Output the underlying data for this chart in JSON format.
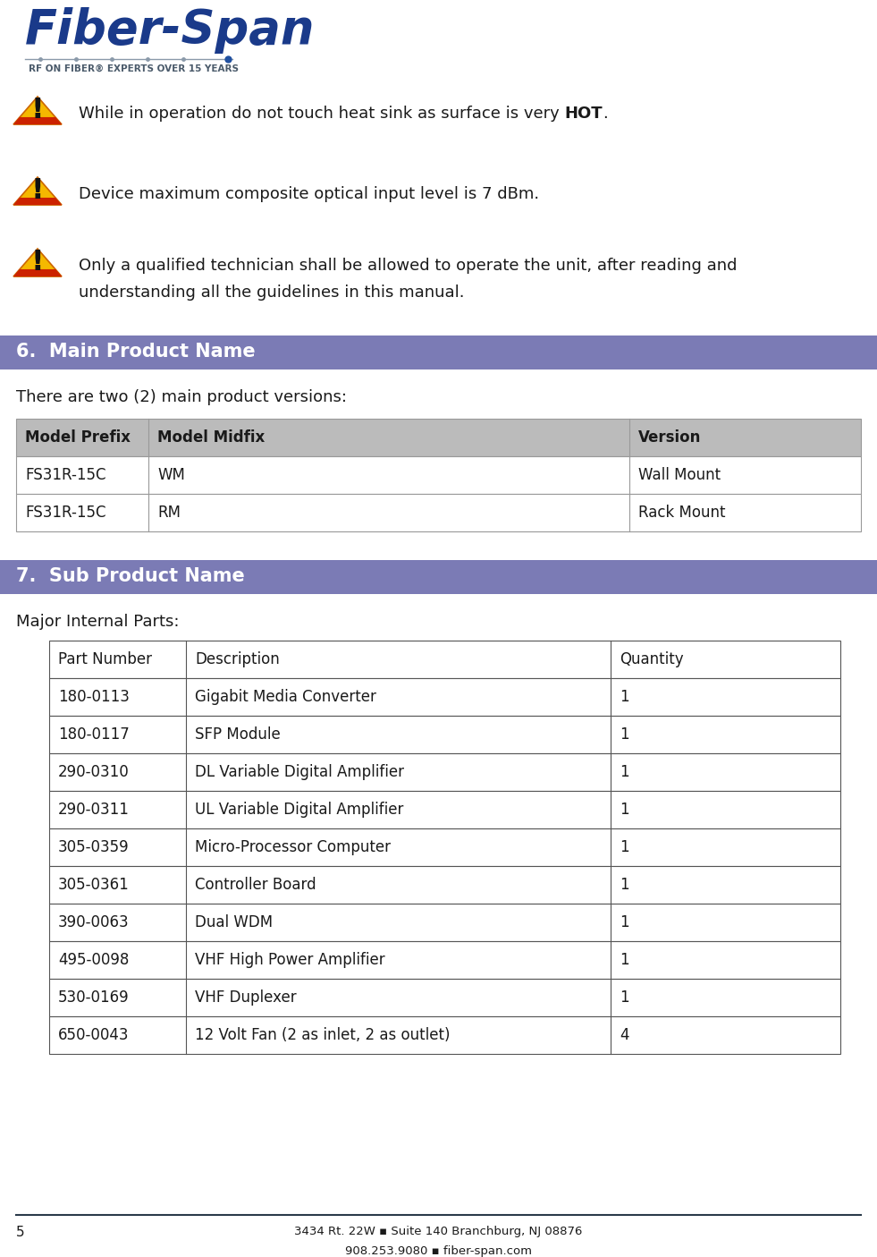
{
  "page_number": "5",
  "footer_line1": "3434 Rt. 22W ▪ Suite 140 Branchburg, NJ 08876",
  "footer_line2": "908.253.9080 ▪ fiber-span.com",
  "warning1_normal": "While in operation do not touch heat sink as surface is very ",
  "warning1_bold": "HOT",
  "warning1_end": ".",
  "warning2": "Device maximum composite optical input level is 7 dBm.",
  "warning3_line1": "Only a qualified technician shall be allowed to operate the unit, after reading and",
  "warning3_line2": "understanding all the guidelines in this manual.",
  "section6_num": "6.",
  "section6_title": "Main Product Name",
  "section6_header_color": "#7B7BB5",
  "section6_text_color": "#FFFFFF",
  "section6_intro": "There are two (2) main product versions:",
  "table1_header": [
    "Model Prefix",
    "Model Midfix",
    "Version"
  ],
  "table1_header_bg": "#BBBBBB",
  "table1_rows": [
    [
      "FS31R-15C",
      "WM",
      "Wall Mount"
    ],
    [
      "FS31R-15C",
      "RM",
      "Rack Mount"
    ]
  ],
  "section7_num": "7.",
  "section7_title": "Sub Product Name",
  "section7_intro": "Major Internal Parts:",
  "table2_header": [
    "Part Number",
    "Description",
    "Quantity"
  ],
  "table2_rows": [
    [
      "180-0113",
      "Gigabit Media Converter",
      "1"
    ],
    [
      "180-0117",
      "SFP Module",
      "1"
    ],
    [
      "290-0310",
      "DL Variable Digital Amplifier",
      "1"
    ],
    [
      "290-0311",
      "UL Variable Digital Amplifier",
      "1"
    ],
    [
      "305-0359",
      "Micro-Processor Computer",
      "1"
    ],
    [
      "305-0361",
      "Controller Board",
      "1"
    ],
    [
      "390-0063",
      "Dual WDM",
      "1"
    ],
    [
      "495-0098",
      "VHF High Power Amplifier",
      "1"
    ],
    [
      "530-0169",
      "VHF Duplexer",
      "1"
    ],
    [
      "650-0043",
      "12 Volt Fan (2 as inlet, 2 as outlet)",
      "4"
    ]
  ],
  "bg_color": "#FFFFFF",
  "body_font_size": 13,
  "table_font_size": 12,
  "logo_font_size": 38,
  "section_font_size": 15
}
